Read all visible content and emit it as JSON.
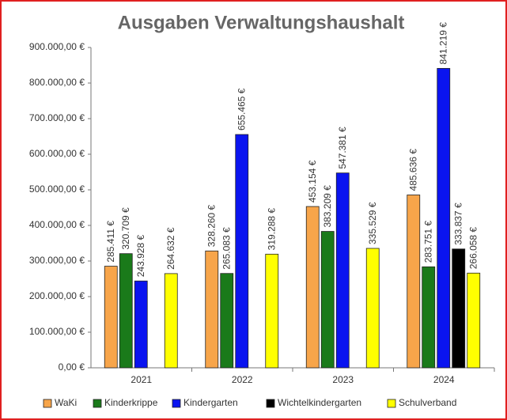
{
  "chart_data": {
    "type": "bar",
    "title": "Ausgaben Verwaltungshaushalt",
    "categories": [
      "2021",
      "2022",
      "2023",
      "2024"
    ],
    "series": [
      {
        "name": "WaKi",
        "color": "#f7a54a",
        "values": [
          285411,
          328260,
          453154,
          485636
        ],
        "value_labels": [
          "285.411 €",
          "328.260 €",
          "453.154 €",
          "485.636 €"
        ]
      },
      {
        "name": "Kinderkrippe",
        "color": "#1a7a1a",
        "values": [
          320709,
          265083,
          383209,
          283751
        ],
        "value_labels": [
          "320.709 €",
          "265.083 €",
          "383.209 €",
          "283.751 €"
        ]
      },
      {
        "name": "Kindergarten",
        "color": "#0a14f0",
        "values": [
          243928,
          655465,
          547381,
          841219
        ],
        "value_labels": [
          "243.928 €",
          "655.465 €",
          "547.381 €",
          "841.219 €"
        ]
      },
      {
        "name": "Wichtelkindergarten",
        "color": "#000000",
        "values": [
          null,
          null,
          null,
          333837
        ],
        "value_labels": [
          null,
          null,
          null,
          "333.837 €"
        ]
      },
      {
        "name": "Schulverband",
        "color": "#ffff00",
        "values": [
          264632,
          319288,
          335529,
          266058
        ],
        "value_labels": [
          "264.632 €",
          "319.288 €",
          "335.529 €",
          "266.058 €"
        ]
      }
    ],
    "ylim": [
      0,
      900000
    ],
    "yticks": [
      {
        "value": 0,
        "label": "0,00 €"
      },
      {
        "value": 100000,
        "label": "100.000,00 €"
      },
      {
        "value": 200000,
        "label": "200.000,00 €"
      },
      {
        "value": 300000,
        "label": "300.000,00 €"
      },
      {
        "value": 400000,
        "label": "400.000,00 €"
      },
      {
        "value": 500000,
        "label": "500.000,00 €"
      },
      {
        "value": 600000,
        "label": "600.000,00 €"
      },
      {
        "value": 700000,
        "label": "700.000,00 €"
      },
      {
        "value": 800000,
        "label": "800.000,00 €"
      },
      {
        "value": 900000,
        "label": "900.000,00 €"
      }
    ],
    "grid": false,
    "legend": "bottom"
  }
}
